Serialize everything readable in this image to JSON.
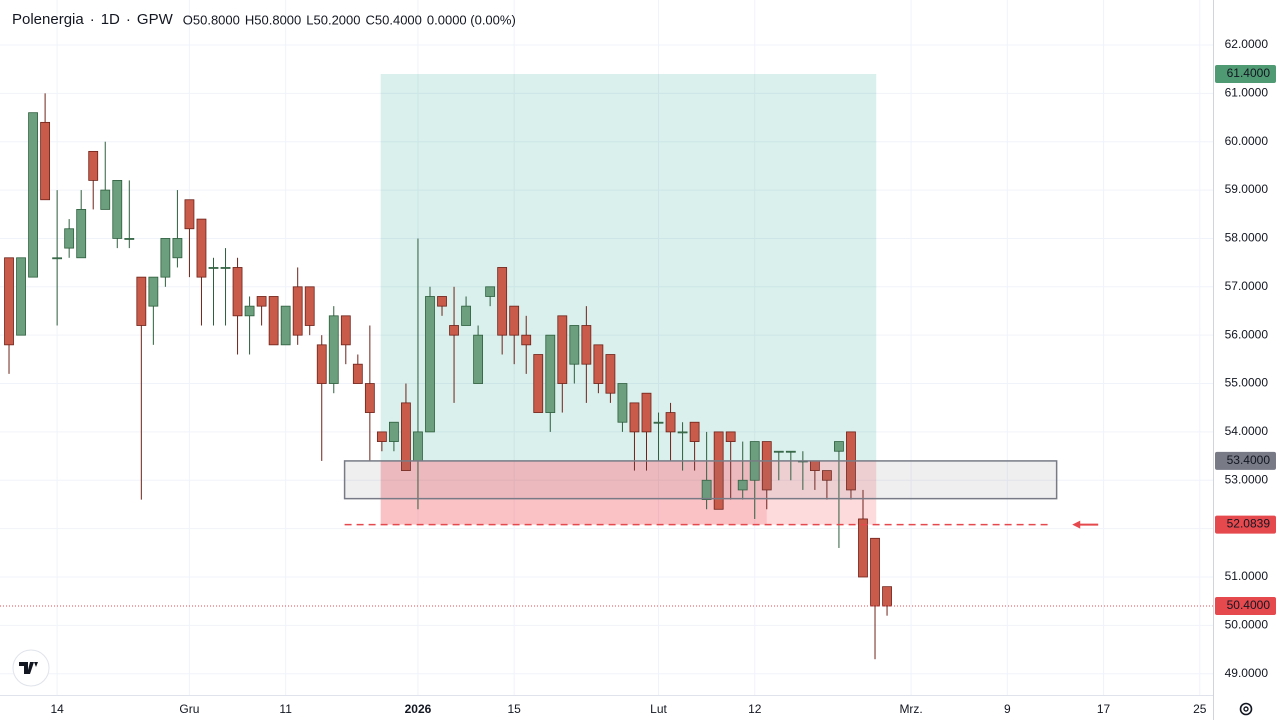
{
  "header": {
    "symbol": "Polenergia",
    "interval": "1D",
    "exchange": "GPW",
    "ohlc": [
      {
        "key": "O",
        "value": "50.8000"
      },
      {
        "key": "H",
        "value": "50.8000"
      },
      {
        "key": "L",
        "value": "50.2000"
      },
      {
        "key": "C",
        "value": "50.4000"
      }
    ],
    "change": "0.0000 (0.00%)"
  },
  "chart_data": {
    "type": "candlestick",
    "x": [
      0,
      1,
      2,
      3,
      4,
      5,
      6,
      7,
      8,
      9,
      10,
      11,
      12,
      13,
      14,
      15,
      16,
      17,
      18,
      19,
      20,
      21,
      22,
      23,
      24,
      25,
      26,
      27,
      28,
      29,
      30,
      31,
      32,
      33,
      34,
      35,
      36,
      37,
      38,
      39,
      40,
      41,
      42,
      43,
      44,
      45,
      46,
      47,
      48,
      49,
      50,
      51,
      52,
      53,
      54,
      55,
      56,
      57,
      58,
      59,
      60,
      61,
      62,
      63,
      64,
      65,
      66,
      67,
      68,
      69,
      70,
      71,
      72,
      73
    ],
    "open": [
      57.6,
      56.0,
      57.2,
      60.4,
      57.6,
      57.8,
      57.6,
      59.8,
      58.6,
      58.0,
      58.0,
      57.2,
      56.6,
      57.2,
      57.6,
      58.8,
      58.4,
      57.4,
      57.4,
      57.4,
      56.4,
      56.8,
      56.8,
      55.8,
      57.0,
      57.0,
      55.8,
      55.0,
      56.4,
      55.4,
      55.0,
      54.0,
      53.8,
      54.6,
      53.4,
      54.0,
      56.8,
      56.2,
      56.2,
      55.0,
      56.8,
      57.4,
      56.6,
      56.0,
      55.6,
      54.4,
      56.4,
      55.4,
      56.2,
      55.8,
      55.6,
      54.2,
      54.6,
      54.8,
      54.2,
      54.4,
      54.0,
      54.2,
      52.6,
      54.0,
      54.0,
      52.8,
      53.0,
      53.8,
      53.6,
      53.6,
      53.4,
      53.4,
      53.2,
      53.6,
      54.0,
      52.2,
      51.8,
      50.8
    ],
    "high": [
      57.6,
      57.6,
      60.6,
      61.0,
      59.0,
      58.4,
      59.0,
      59.8,
      60.0,
      59.2,
      59.2,
      57.2,
      57.2,
      58.0,
      59.0,
      58.8,
      58.4,
      57.6,
      57.8,
      57.6,
      56.8,
      56.8,
      56.8,
      56.6,
      57.4,
      57.0,
      56.0,
      56.6,
      56.4,
      55.6,
      56.2,
      54.0,
      54.2,
      55.0,
      58.0,
      57.0,
      56.8,
      57.0,
      56.8,
      56.2,
      57.0,
      57.4,
      56.6,
      56.4,
      55.6,
      56.0,
      56.4,
      56.2,
      56.6,
      55.8,
      55.6,
      55.0,
      54.6,
      54.8,
      54.4,
      54.6,
      54.2,
      54.2,
      54.0,
      54.0,
      54.0,
      53.8,
      53.8,
      53.8,
      53.6,
      53.6,
      53.6,
      53.4,
      53.2,
      53.8,
      54.0,
      52.8,
      51.8,
      50.8
    ],
    "low": [
      55.2,
      56.0,
      57.2,
      58.8,
      56.2,
      57.6,
      57.6,
      58.6,
      58.6,
      57.8,
      57.8,
      52.6,
      55.8,
      57.0,
      57.4,
      57.2,
      56.2,
      56.2,
      56.2,
      55.6,
      55.6,
      56.2,
      55.8,
      55.8,
      55.8,
      56.0,
      53.4,
      54.8,
      55.4,
      55.0,
      53.4,
      53.6,
      53.6,
      53.2,
      52.4,
      54.0,
      56.4,
      54.6,
      56.2,
      55.0,
      56.6,
      55.6,
      55.4,
      55.2,
      54.4,
      54.0,
      54.4,
      55.0,
      54.6,
      54.8,
      54.6,
      54.0,
      53.2,
      53.2,
      53.4,
      53.4,
      53.2,
      53.2,
      52.4,
      52.4,
      52.6,
      52.6,
      52.2,
      52.4,
      53.0,
      53.0,
      52.8,
      52.8,
      52.6,
      51.6,
      52.6,
      51.0,
      49.3,
      50.2
    ],
    "close": [
      55.8,
      57.6,
      60.6,
      58.8,
      57.6,
      58.2,
      58.6,
      59.2,
      59.0,
      59.2,
      58.0,
      56.2,
      57.2,
      58.0,
      58.0,
      58.2,
      57.2,
      57.4,
      57.4,
      56.4,
      56.6,
      56.6,
      55.8,
      56.6,
      56.0,
      56.2,
      55.0,
      56.4,
      55.8,
      55.0,
      54.4,
      53.8,
      54.2,
      53.2,
      54.0,
      56.8,
      56.6,
      56.0,
      56.6,
      56.0,
      57.0,
      56.0,
      56.0,
      55.8,
      54.4,
      56.0,
      55.0,
      56.2,
      55.4,
      55.0,
      54.8,
      55.0,
      54.0,
      54.0,
      54.2,
      54.0,
      54.0,
      53.8,
      53.0,
      52.4,
      53.8,
      53.0,
      53.8,
      52.8,
      53.6,
      53.6,
      53.4,
      53.2,
      53.0,
      53.8,
      52.8,
      51.0,
      50.4,
      50.4
    ],
    "up_color": "#6c9f7d",
    "up_border": "#2d5e3d",
    "down_color": "#c95b4b",
    "down_border": "#6e2219",
    "xlim": [
      -0.75,
      100.1
    ],
    "ylim": [
      48.56,
      62.93
    ],
    "xticks": [
      {
        "value": 4,
        "label": "14"
      },
      {
        "value": 15,
        "label": "Gru"
      },
      {
        "value": 23,
        "label": "11"
      },
      {
        "value": 34,
        "label": "2026"
      },
      {
        "value": 42,
        "label": "15"
      },
      {
        "value": 54,
        "label": "Lut"
      },
      {
        "value": 62,
        "label": "12"
      },
      {
        "value": 75,
        "label": "Mrz."
      },
      {
        "value": 83,
        "label": "9"
      },
      {
        "value": 91,
        "label": "17"
      },
      {
        "value": 99,
        "label": "25"
      }
    ],
    "yticks": [
      {
        "value": 49,
        "label": "49.0000"
      },
      {
        "value": 50,
        "label": "50.0000"
      },
      {
        "value": 51,
        "label": "51.0000"
      },
      {
        "value": 52,
        "label": "52.0000"
      },
      {
        "value": 53,
        "label": "53.0000"
      },
      {
        "value": 54,
        "label": "54.0000"
      },
      {
        "value": 55,
        "label": "55.0000"
      },
      {
        "value": 56,
        "label": "56.0000"
      },
      {
        "value": 57,
        "label": "57.0000"
      },
      {
        "value": 58,
        "label": "58.0000"
      },
      {
        "value": 59,
        "label": "59.0000"
      },
      {
        "value": 60,
        "label": "60.0000"
      },
      {
        "value": 61,
        "label": "61.0000"
      },
      {
        "value": 62,
        "label": "62.0000"
      }
    ],
    "grid": true,
    "levels": [
      {
        "value": 61.4,
        "label": "61.4000",
        "color": "#4f9a72"
      },
      {
        "value": 53.4,
        "label": "53.4000",
        "color": "#787b86"
      },
      {
        "value": 52.0839,
        "label": "52.0839",
        "color": "#e5484d"
      },
      {
        "value": 50.4,
        "label": "50.4000",
        "color": "#e5484d"
      }
    ],
    "position_x": [
      30.9,
      72.1
    ],
    "stop_hit_x": 63.0,
    "zone_x": [
      27.9,
      87.1
    ],
    "zone_low": 52.62,
    "stop_line_x": [
      27.9,
      86.4
    ]
  }
}
